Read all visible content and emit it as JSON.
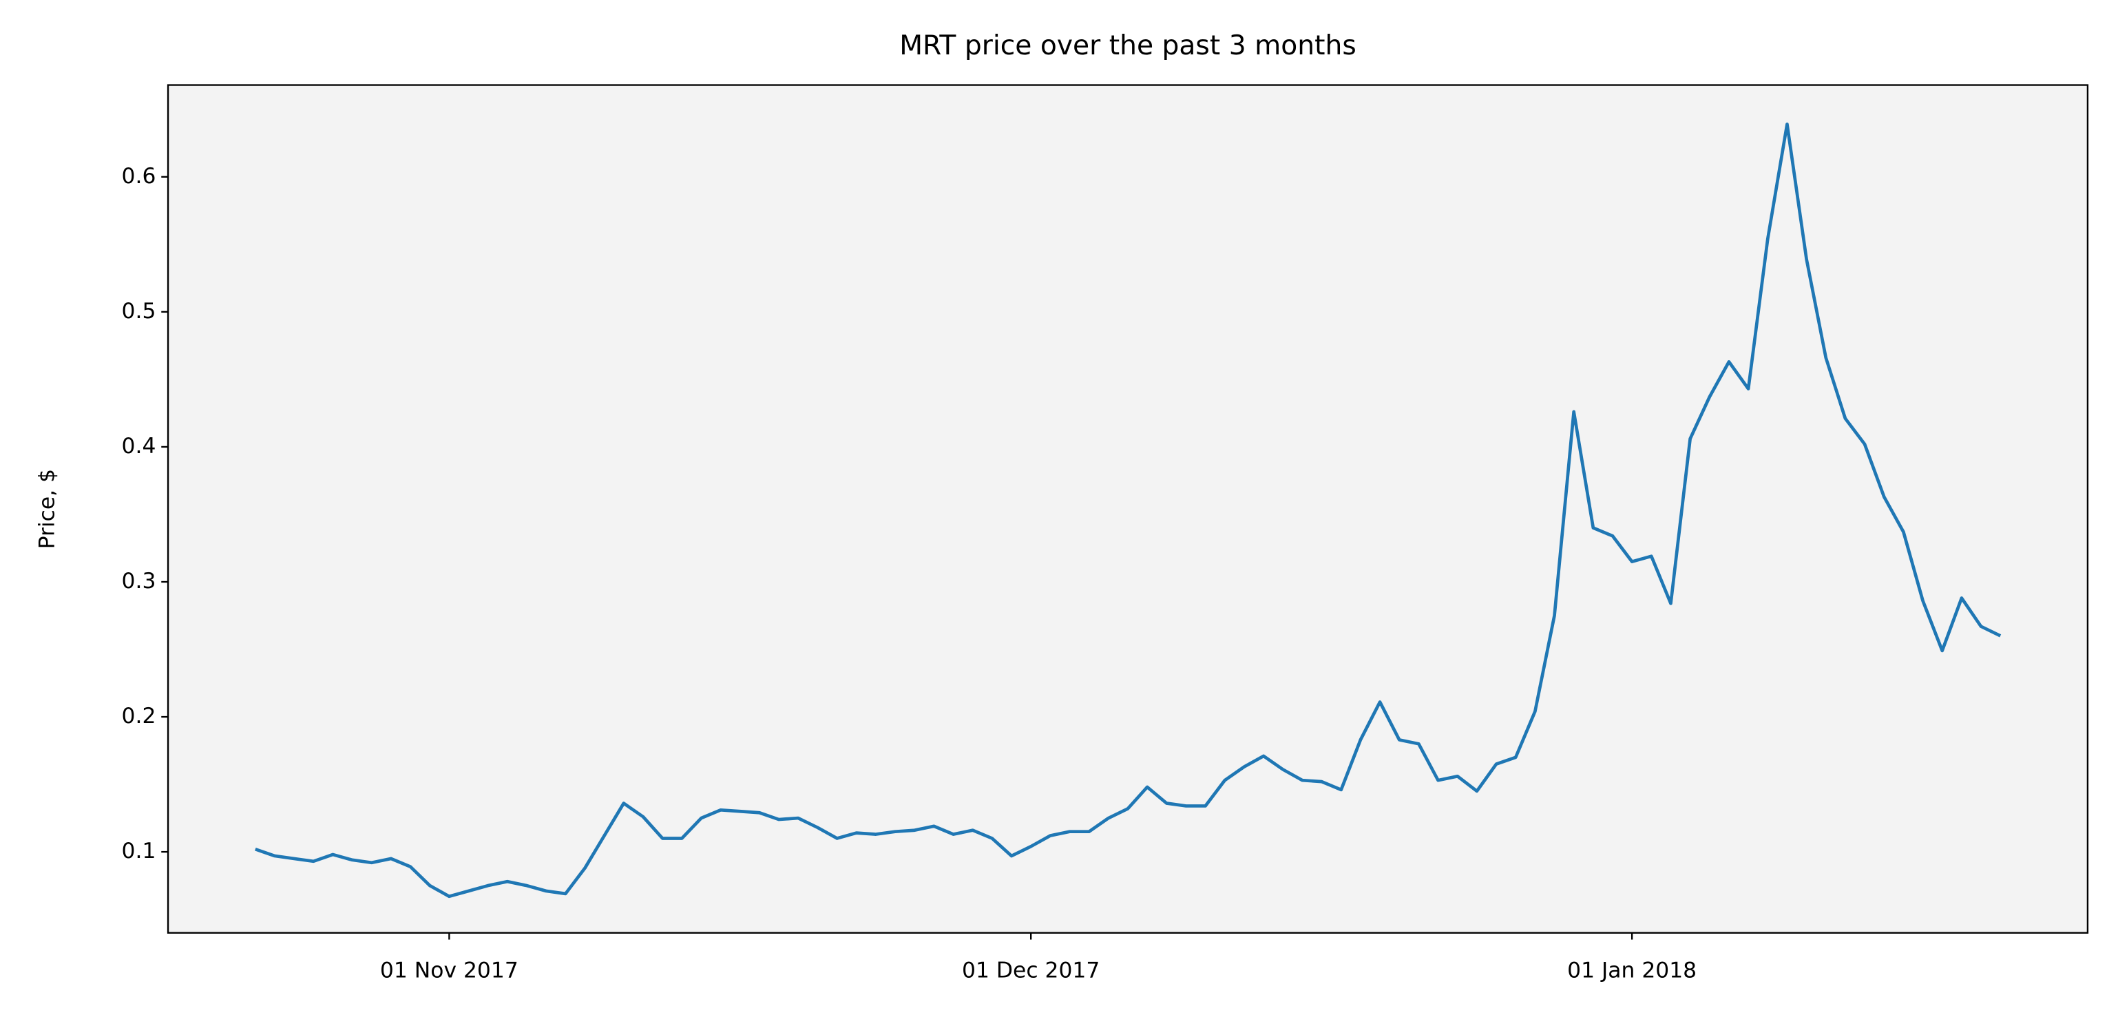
{
  "chart_data": {
    "type": "line",
    "title": "MRT price over the past 3 months",
    "y_label": "Price, $",
    "x": [
      "2017-10-22",
      "2017-10-23",
      "2017-10-24",
      "2017-10-25",
      "2017-10-26",
      "2017-10-27",
      "2017-10-28",
      "2017-10-29",
      "2017-10-30",
      "2017-10-31",
      "2017-11-01",
      "2017-11-02",
      "2017-11-03",
      "2017-11-04",
      "2017-11-05",
      "2017-11-06",
      "2017-11-07",
      "2017-11-08",
      "2017-11-09",
      "2017-11-10",
      "2017-11-11",
      "2017-11-12",
      "2017-11-13",
      "2017-11-14",
      "2017-11-15",
      "2017-11-16",
      "2017-11-17",
      "2017-11-18",
      "2017-11-19",
      "2017-11-20",
      "2017-11-21",
      "2017-11-22",
      "2017-11-23",
      "2017-11-24",
      "2017-11-25",
      "2017-11-26",
      "2017-11-27",
      "2017-11-28",
      "2017-11-29",
      "2017-11-30",
      "2017-12-01",
      "2017-12-02",
      "2017-12-03",
      "2017-12-04",
      "2017-12-05",
      "2017-12-06",
      "2017-12-07",
      "2017-12-08",
      "2017-12-09",
      "2017-12-10",
      "2017-12-11",
      "2017-12-12",
      "2017-12-13",
      "2017-12-14",
      "2017-12-15",
      "2017-12-16",
      "2017-12-17",
      "2017-12-18",
      "2017-12-19",
      "2017-12-20",
      "2017-12-21",
      "2017-12-22",
      "2017-12-23",
      "2017-12-24",
      "2017-12-25",
      "2017-12-26",
      "2017-12-27",
      "2017-12-28",
      "2017-12-29",
      "2017-12-30",
      "2017-12-31",
      "2018-01-01",
      "2018-01-02",
      "2018-01-03",
      "2018-01-04",
      "2018-01-05",
      "2018-01-06",
      "2018-01-07",
      "2018-01-08",
      "2018-01-09",
      "2018-01-10",
      "2018-01-11",
      "2018-01-12",
      "2018-01-13",
      "2018-01-14",
      "2018-01-15",
      "2018-01-16",
      "2018-01-17",
      "2018-01-18",
      "2018-01-19",
      "2018-01-20"
    ],
    "series": [
      {
        "color": "#1f77b4",
        "values": [
          0.102,
          0.097,
          0.095,
          0.093,
          0.098,
          0.094,
          0.092,
          0.095,
          0.089,
          0.075,
          0.067,
          0.071,
          0.075,
          0.078,
          0.075,
          0.071,
          0.069,
          0.088,
          0.112,
          0.136,
          0.126,
          0.11,
          0.11,
          0.125,
          0.131,
          0.13,
          0.129,
          0.124,
          0.125,
          0.118,
          0.11,
          0.114,
          0.113,
          0.115,
          0.116,
          0.119,
          0.113,
          0.116,
          0.11,
          0.097,
          0.104,
          0.112,
          0.115,
          0.115,
          0.125,
          0.132,
          0.148,
          0.136,
          0.134,
          0.134,
          0.153,
          0.163,
          0.171,
          0.161,
          0.153,
          0.152,
          0.146,
          0.183,
          0.211,
          0.183,
          0.18,
          0.153,
          0.156,
          0.145,
          0.165,
          0.17,
          0.204,
          0.275,
          0.426,
          0.34,
          0.334,
          0.315,
          0.319,
          0.284,
          0.406,
          0.437,
          0.463,
          0.443,
          0.554,
          0.639,
          0.539,
          0.466,
          0.421,
          0.402,
          0.363,
          0.337,
          0.286,
          0.249,
          0.288,
          0.267,
          0.26
        ]
      }
    ],
    "xlim": [
      "2017-10-17T12:00",
      "2018-01-24T12:00"
    ],
    "xticks": [
      {
        "value": "2017-11-01",
        "label": "01 Nov 2017"
      },
      {
        "value": "2017-12-01",
        "label": "01 Dec 2017"
      },
      {
        "value": "2018-01-01",
        "label": "01 Jan 2018"
      }
    ],
    "ylim": [
      0.04,
      0.668
    ],
    "yticks": [
      0.1,
      0.2,
      0.3,
      0.4,
      0.5,
      0.6
    ],
    "background": "#f3f3f3"
  }
}
